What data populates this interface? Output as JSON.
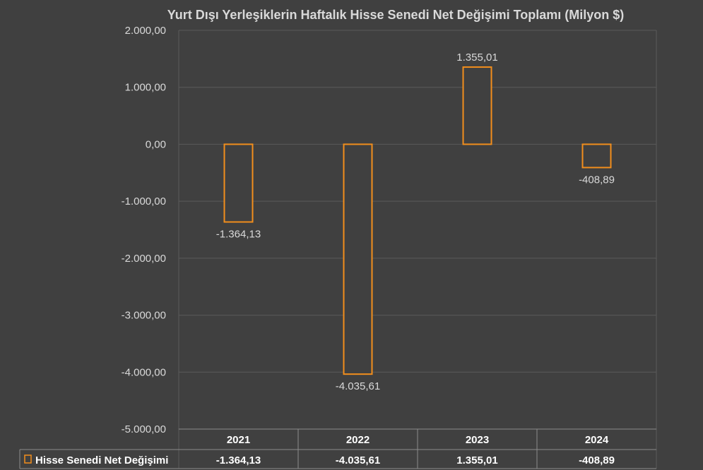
{
  "chart_data": {
    "type": "bar",
    "title": "Yurt Dışı Yerleşiklerin Haftalık Hisse Senedi Net Değişimi Toplamı (Milyon $)",
    "categories": [
      "2021",
      "2022",
      "2023",
      "2024"
    ],
    "series": [
      {
        "name": "Hisse Senedi Net Değişimi",
        "values": [
          -1364.13,
          -4035.61,
          1355.01,
          -408.89
        ],
        "labels": [
          "-1.364,13",
          "-4.035,61",
          "1.355,01",
          "-408,89"
        ],
        "table_labels": [
          "-1.364,13",
          "-4.035,61",
          "1.355,01",
          "-408,89"
        ]
      }
    ],
    "ylim": [
      -5000,
      2000
    ],
    "yticks": [
      2000,
      1000,
      0,
      -1000,
      -2000,
      -3000,
      -4000,
      -5000
    ],
    "ytick_labels": [
      "2.000,00",
      "1.000,00",
      "0,00",
      "-1.000,00",
      "-2.000,00",
      "-3.000,00",
      "-4.000,00",
      "-5.000,00"
    ],
    "grid": true,
    "legend": "data-table-bottom",
    "colors": {
      "background": "#404040",
      "bar_stroke": "#f28e1c",
      "bar_fill": "#404040",
      "grid": "#5a5a5a",
      "text": "#d9d9d9",
      "table_text": "#ffffff"
    }
  }
}
